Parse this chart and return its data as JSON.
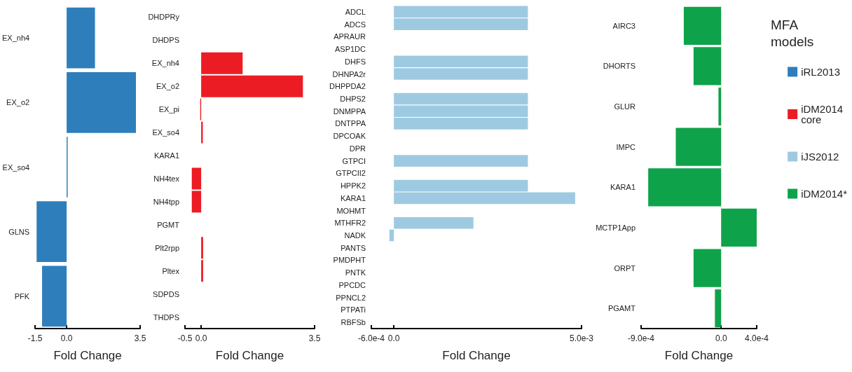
{
  "chart_data": [
    {
      "type": "bar",
      "orientation": "horizontal",
      "categories": [
        "EX_nh4",
        "EX_o2",
        "EX_so4",
        "GLNS",
        "PFK"
      ],
      "series": [
        {
          "name": "iRL2013",
          "color": "#2e7ebc",
          "values": [
            1.35,
            3.3,
            0.05,
            -1.43,
            -1.17
          ]
        }
      ],
      "xlim": [
        -1.5,
        3.5
      ],
      "xticks": [
        -1.5,
        {
          "value": 0,
          "label": "0.0"
        },
        3.5
      ],
      "xlabel": "Fold Change",
      "grid": false,
      "legend": "right"
    },
    {
      "type": "bar",
      "orientation": "horizontal",
      "categories": [
        "DHDPRy",
        "DHDPS",
        "EX_nh4",
        "EX_o2",
        "EX_pi",
        "EX_so4",
        "KARA1",
        "NH4tex",
        "NH4tpp",
        "PGMT",
        "Plt2rpp",
        "Pltex",
        "SDPDS",
        "THDPS"
      ],
      "series": [
        {
          "name": "iDM2014 core",
          "color": "#ec1c24",
          "values": [
            0,
            0,
            1.28,
            3.14,
            -0.03,
            0.05,
            0,
            -0.29,
            -0.29,
            0,
            0.06,
            0.06,
            0,
            0
          ]
        }
      ],
      "xlim": [
        -0.5,
        3.5
      ],
      "xticks": [
        -0.5,
        {
          "value": 0,
          "label": "0.0"
        },
        3.5
      ],
      "xlabel": "Fold Change",
      "grid": false,
      "legend": "right"
    },
    {
      "type": "bar",
      "orientation": "horizontal",
      "categories": [
        "ADCL",
        "ADCS",
        "APRAUR",
        "ASP1DC",
        "DHFS",
        "DHNPA2r",
        "DHPPDA2",
        "DHPS2",
        "DNMPPA",
        "DNTPPA",
        "DPCOAK",
        "DPR",
        "GTPCI",
        "GTPCII2",
        "HPPK2",
        "KARA1",
        "MOHMT",
        "MTHFR2",
        "NADK",
        "PANTS",
        "PMDPHT",
        "PNTK",
        "PPCDC",
        "PPNCL2",
        "PTPATi",
        "RBFSb"
      ],
      "series": [
        {
          "name": "iJS2012",
          "color": "#9ecae1",
          "values": [
            0.00357,
            0.00357,
            0,
            0,
            0.00357,
            0.00357,
            0,
            0.00357,
            0.00357,
            0.00357,
            0,
            0,
            0.00357,
            0,
            0.00357,
            0.00483,
            0,
            0.00212,
            -0.00012,
            0,
            0,
            0,
            0,
            0,
            0,
            0
          ]
        }
      ],
      "xlim": [
        -0.0006,
        0.005
      ],
      "xticks": [
        {
          "value": -0.0006,
          "label": "-6.0e-4"
        },
        {
          "value": 0,
          "label": "0.0"
        },
        {
          "value": 0.005,
          "label": "5.0e-3"
        }
      ],
      "xlabel": "Fold Change",
      "grid": false,
      "legend": "right"
    },
    {
      "type": "bar",
      "orientation": "horizontal",
      "categories": [
        "AIRC3",
        "DHORTS",
        "GLUR",
        "IMPC",
        "KARA1",
        "MCTP1App",
        "ORPT",
        "PGAMT"
      ],
      "series": [
        {
          "name": "iDM2014*",
          "color": "#0ea34a",
          "values": [
            -0.00042,
            -0.00031,
            -3e-05,
            -0.00051,
            -0.00082,
            0.0004,
            -0.00031,
            -7e-05
          ]
        }
      ],
      "xlim": [
        -0.0009,
        0.0004
      ],
      "xticks": [
        {
          "value": -0.0009,
          "label": "-9.0e-4"
        },
        {
          "value": 0,
          "label": "0.0"
        },
        {
          "value": 0.0004,
          "label": "4.0e-4"
        }
      ],
      "xlabel": "Fold Change",
      "grid": false,
      "legend": "right",
      "legend_title": "MFA models"
    }
  ]
}
